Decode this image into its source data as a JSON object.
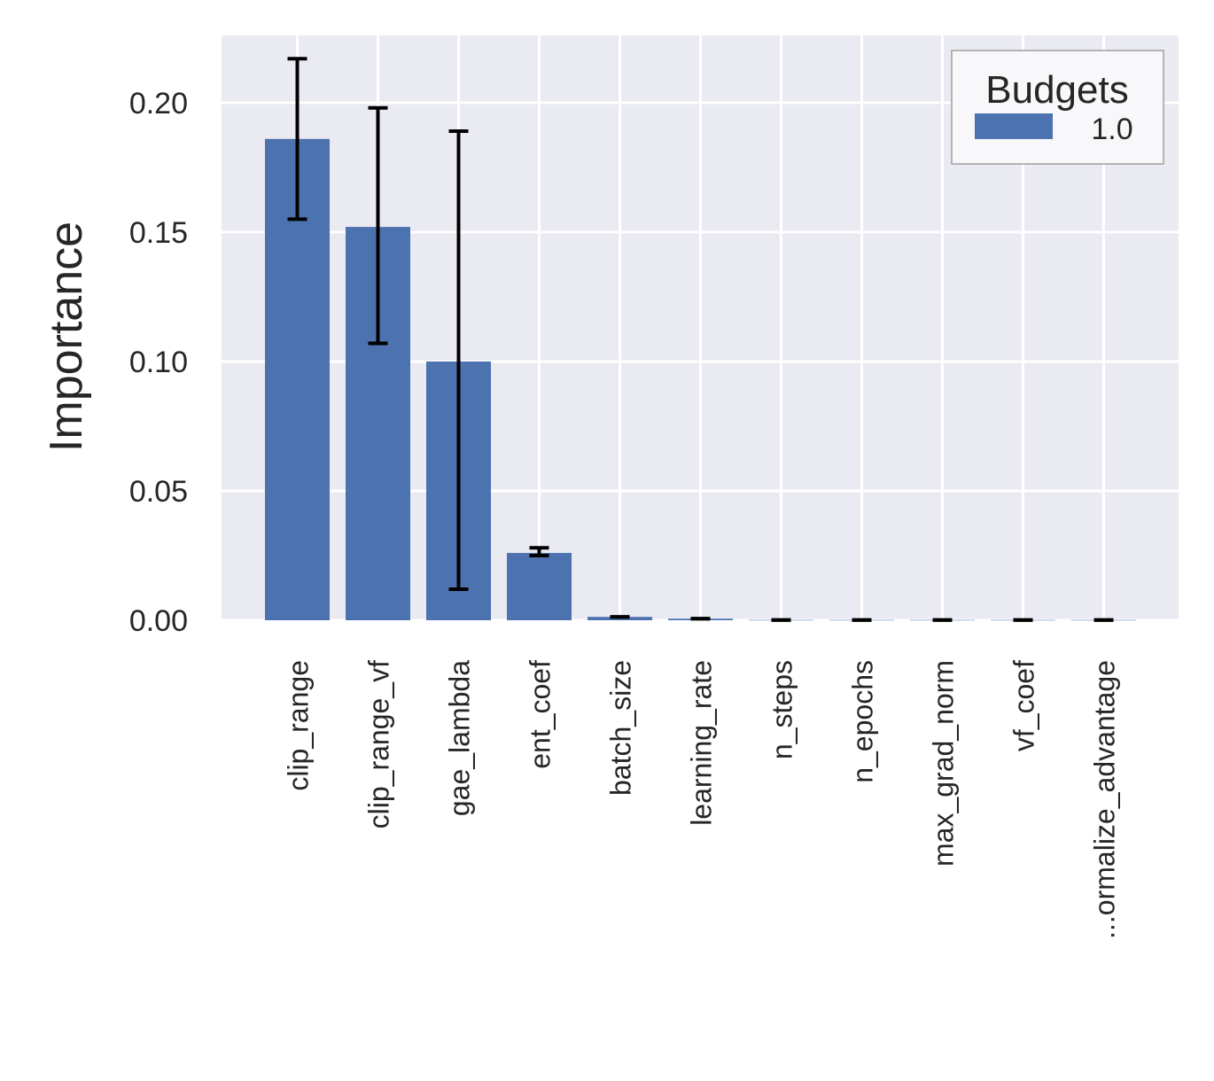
{
  "chart_data": {
    "type": "bar",
    "title": "",
    "xlabel": "",
    "ylabel": "Importance",
    "ylim": [
      0,
      0.226
    ],
    "yticks": [
      "0.00",
      "0.05",
      "0.10",
      "0.15",
      "0.20"
    ],
    "ytick_values": [
      0,
      0.05,
      0.1,
      0.15,
      0.2
    ],
    "grid": true,
    "background": "#eaeaf2",
    "categories": [
      "clip_range",
      "clip_range_vf",
      "gae_lambda",
      "ent_coef",
      "batch_size",
      "learning_rate",
      "n_steps",
      "n_epochs",
      "max_grad_norm",
      "vf_coef",
      "...ormalize_advantage"
    ],
    "series": [
      {
        "name": "1.0",
        "color": "#4c72b0",
        "values": [
          0.186,
          0.152,
          0.1,
          0.026,
          0.0013,
          0.0006,
          0.0001,
          0.0001,
          0.0001,
          0.0001,
          0.0001
        ],
        "err_low": [
          0.155,
          0.107,
          0.012,
          0.025,
          0.0013,
          0.0006,
          0.0001,
          0.0001,
          0.0001,
          0.0001,
          0.0001
        ],
        "err_high": [
          0.217,
          0.198,
          0.189,
          0.028,
          0.0013,
          0.0006,
          0.0001,
          0.0001,
          0.0001,
          0.0001,
          0.0001
        ]
      }
    ],
    "legend": {
      "title": "Budgets",
      "placement": "top-right"
    }
  }
}
